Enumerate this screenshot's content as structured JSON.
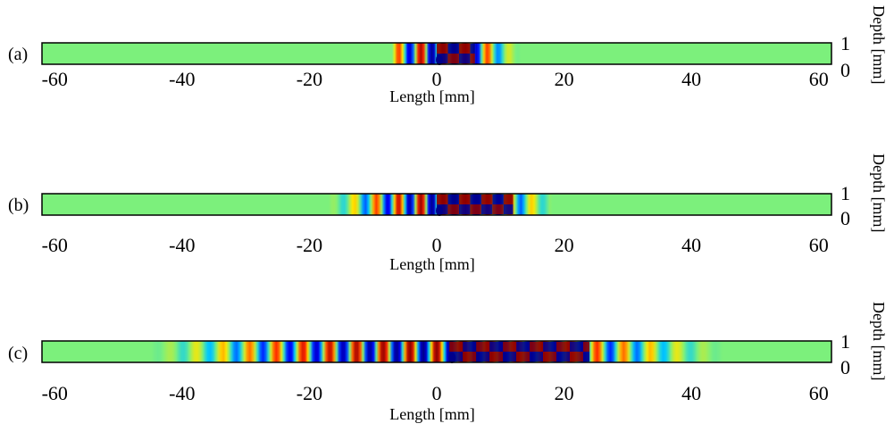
{
  "panels": [
    {
      "id": "a",
      "label": "(a)",
      "xlabel": "Length [mm]",
      "ylabel": "Depth [mm]",
      "x_ticks": [
        "-60",
        "-40",
        "-20",
        "0",
        "20",
        "40",
        "60"
      ],
      "y_ticks": [
        "1",
        "0"
      ],
      "xlim": [
        -62,
        62
      ],
      "ylim": [
        0,
        1
      ],
      "wave_center_mm": 1,
      "wave_extent_mm": [
        -7,
        13
      ],
      "wavelength_mm": 3.5,
      "inclusion_extent_mm": [
        0,
        6
      ]
    },
    {
      "id": "b",
      "label": "(b)",
      "xlabel": "Length [mm]",
      "ylabel": "Depth [mm]",
      "x_ticks": [
        "-60",
        "-40",
        "-20",
        "0",
        "20",
        "40",
        "60"
      ],
      "y_ticks": [
        "1",
        "0"
      ],
      "xlim": [
        -62,
        62
      ],
      "ylim": [
        0,
        1
      ],
      "wave_center_mm": 1,
      "wave_extent_mm": [
        -17,
        18
      ],
      "wavelength_mm": 3.5,
      "inclusion_extent_mm": [
        0,
        12
      ]
    },
    {
      "id": "c",
      "label": "(c)",
      "xlabel": "Length [mm]",
      "ylabel": "Depth [mm]",
      "x_ticks": [
        "-60",
        "-40",
        "-20",
        "0",
        "20",
        "40",
        "60"
      ],
      "y_ticks": [
        "1",
        "0"
      ],
      "xlim": [
        -62,
        62
      ],
      "ylim": [
        0,
        1
      ],
      "wave_center_mm": 0,
      "wave_extent_mm": [
        -45,
        45
      ],
      "wavelength_mm": 4.2,
      "inclusion_extent_mm": [
        2,
        24
      ]
    }
  ],
  "colors": {
    "background_field": "#7cf07c",
    "positive_peak": "#8b0000",
    "negative_peak": "#00008b",
    "frame": "#000000"
  }
}
